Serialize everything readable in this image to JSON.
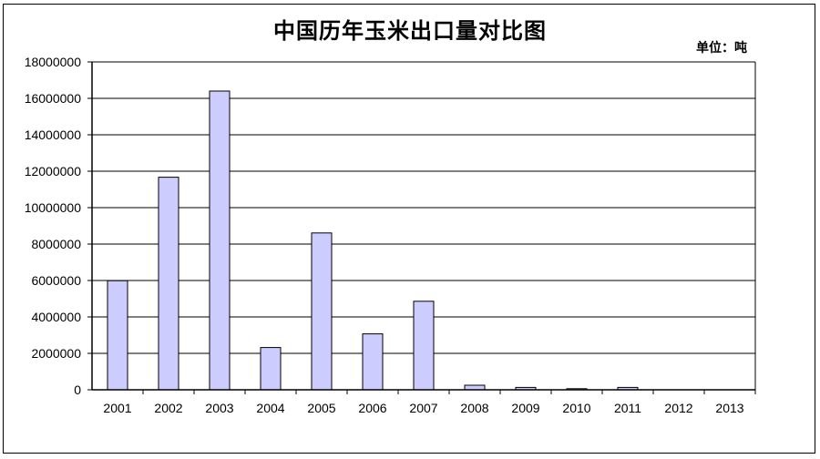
{
  "chart_data": {
    "type": "bar",
    "title": "中国历年玉米出口量对比图",
    "unit_label": "单位：吨",
    "categories": [
      "2001",
      "2002",
      "2003",
      "2004",
      "2005",
      "2006",
      "2007",
      "2008",
      "2009",
      "2010",
      "2011",
      "2012",
      "2013"
    ],
    "values": [
      5990000,
      11670000,
      16400000,
      2320000,
      8610000,
      3070000,
      4860000,
      250000,
      130000,
      60000,
      130000,
      0,
      0
    ],
    "ylim": [
      0,
      18000000
    ],
    "yticks": [
      "0",
      "2000000",
      "4000000",
      "6000000",
      "8000000",
      "10000000",
      "12000000",
      "14000000",
      "16000000",
      "18000000"
    ],
    "grid": true,
    "legend": "none",
    "colors": {
      "bar_fill": "#ccccff",
      "bar_stroke": "#000000",
      "grid": "#000000"
    }
  }
}
